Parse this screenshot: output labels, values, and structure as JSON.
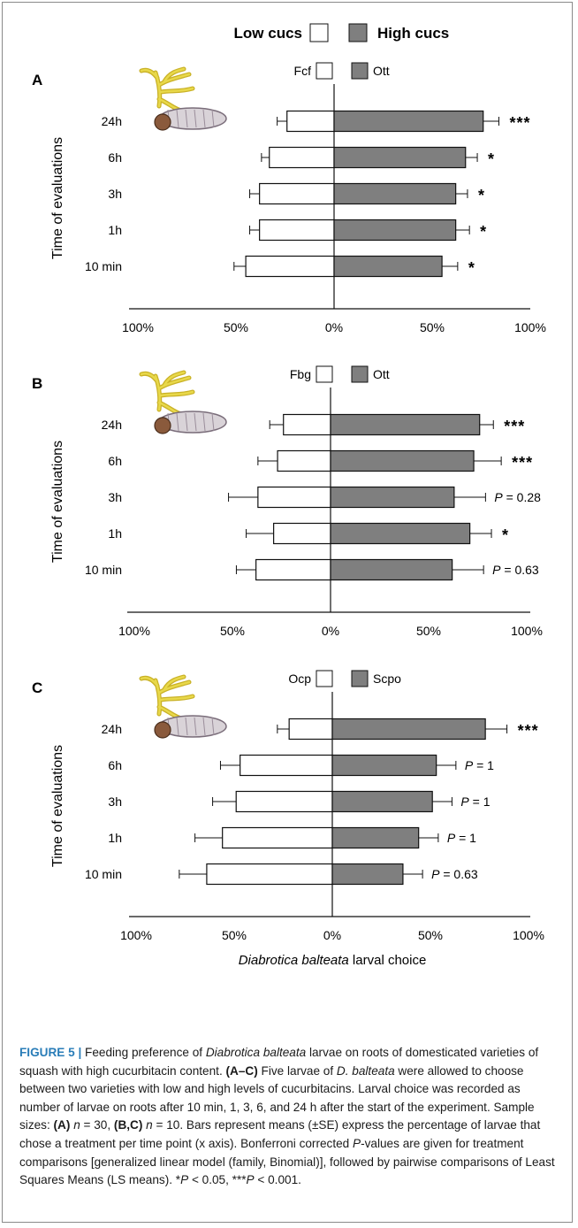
{
  "legend_top": {
    "low": "Low cucs",
    "high": "High cucs"
  },
  "colors": {
    "high_fill": "#7f7f7f",
    "low_fill": "#ffffff",
    "stroke": "#111111"
  },
  "icon": "larva-on-root-icon",
  "chart_data": [
    {
      "type": "bar",
      "panel": "A",
      "orientation": "horizontal-diverging",
      "ylabel": "Time of evaluations",
      "categories": [
        "24h",
        "6h",
        "3h",
        "1h",
        "10 min"
      ],
      "xticks": [
        "100%",
        "50%",
        "0%",
        "50%",
        "100%"
      ],
      "xlim": [
        -100,
        100
      ],
      "series": [
        {
          "name": "Fcf",
          "side": "left",
          "values": [
            24,
            33,
            38,
            38,
            45
          ],
          "errors": [
            5,
            4,
            5,
            5,
            6
          ]
        },
        {
          "name": "Ott",
          "side": "right",
          "values": [
            76,
            67,
            62,
            62,
            55
          ],
          "errors": [
            8,
            6,
            6,
            7,
            8
          ]
        }
      ],
      "annotations": [
        "***",
        "*",
        "*",
        "*",
        "*"
      ]
    },
    {
      "type": "bar",
      "panel": "B",
      "orientation": "horizontal-diverging",
      "ylabel": "Time of evaluations",
      "categories": [
        "24h",
        "6h",
        "3h",
        "1h",
        "10 min"
      ],
      "xticks": [
        "100%",
        "50%",
        "0%",
        "50%",
        "100%"
      ],
      "xlim": [
        -100,
        100
      ],
      "series": [
        {
          "name": "Fbg",
          "side": "left",
          "values": [
            24,
            27,
            37,
            29,
            38
          ],
          "errors": [
            7,
            10,
            15,
            14,
            10
          ]
        },
        {
          "name": "Ott",
          "side": "right",
          "values": [
            76,
            73,
            63,
            71,
            62
          ],
          "errors": [
            7,
            14,
            16,
            11,
            16
          ]
        }
      ],
      "annotations": [
        "***",
        "***",
        "P = 0.28",
        "*",
        "P = 0.63"
      ]
    },
    {
      "type": "bar",
      "panel": "C",
      "orientation": "horizontal-diverging",
      "ylabel": "Time of evaluations",
      "xlabel": "Diabrotica balteata larval choice",
      "categories": [
        "24h",
        "6h",
        "3h",
        "1h",
        "10 min"
      ],
      "xticks": [
        "100%",
        "50%",
        "0%",
        "50%",
        "100%"
      ],
      "xlim": [
        -100,
        100
      ],
      "series": [
        {
          "name": "Ocp",
          "side": "left",
          "values": [
            22,
            47,
            49,
            56,
            64
          ],
          "errors": [
            6,
            10,
            12,
            14,
            14
          ]
        },
        {
          "name": "Scpo",
          "side": "right",
          "values": [
            78,
            53,
            51,
            44,
            36
          ],
          "errors": [
            11,
            10,
            10,
            10,
            10
          ]
        }
      ],
      "annotations": [
        "***",
        "P = 1",
        "P = 1",
        "P = 1",
        "P = 0.63"
      ]
    }
  ],
  "caption": {
    "label": "FIGURE 5 |",
    "parts": [
      {
        "t": " Feeding preference of "
      },
      {
        "t": "Diabrotica balteata",
        "i": true
      },
      {
        "t": " larvae on roots of domesticated varieties of squash with high cucurbitacin content. "
      },
      {
        "t": "(A–C)",
        "b": true
      },
      {
        "t": " Five larvae of "
      },
      {
        "t": "D. balteata",
        "i": true
      },
      {
        "t": " were allowed to choose between two varieties with low and high levels of cucurbitacins. Larval choice was recorded as number of larvae on roots after 10 min, 1, 3, 6, and 24 h after the start of the experiment. Sample sizes: "
      },
      {
        "t": "(A)",
        "b": true
      },
      {
        "t": " "
      },
      {
        "t": "n",
        "i": true
      },
      {
        "t": " = 30, "
      },
      {
        "t": "(B,C)",
        "b": true
      },
      {
        "t": " "
      },
      {
        "t": "n",
        "i": true
      },
      {
        "t": " = 10. Bars represent means (±SE) express the percentage of larvae that chose a treatment per time point (x axis). Bonferroni corrected "
      },
      {
        "t": "P",
        "i": true
      },
      {
        "t": "-values are given for treatment comparisons [generalized linear model (family, Binomial)], followed by pairwise comparisons of Least Squares Means (LS means). *"
      },
      {
        "t": "P",
        "i": true
      },
      {
        "t": " < 0.05, ***"
      },
      {
        "t": "P",
        "i": true
      },
      {
        "t": " < 0.001."
      }
    ]
  }
}
